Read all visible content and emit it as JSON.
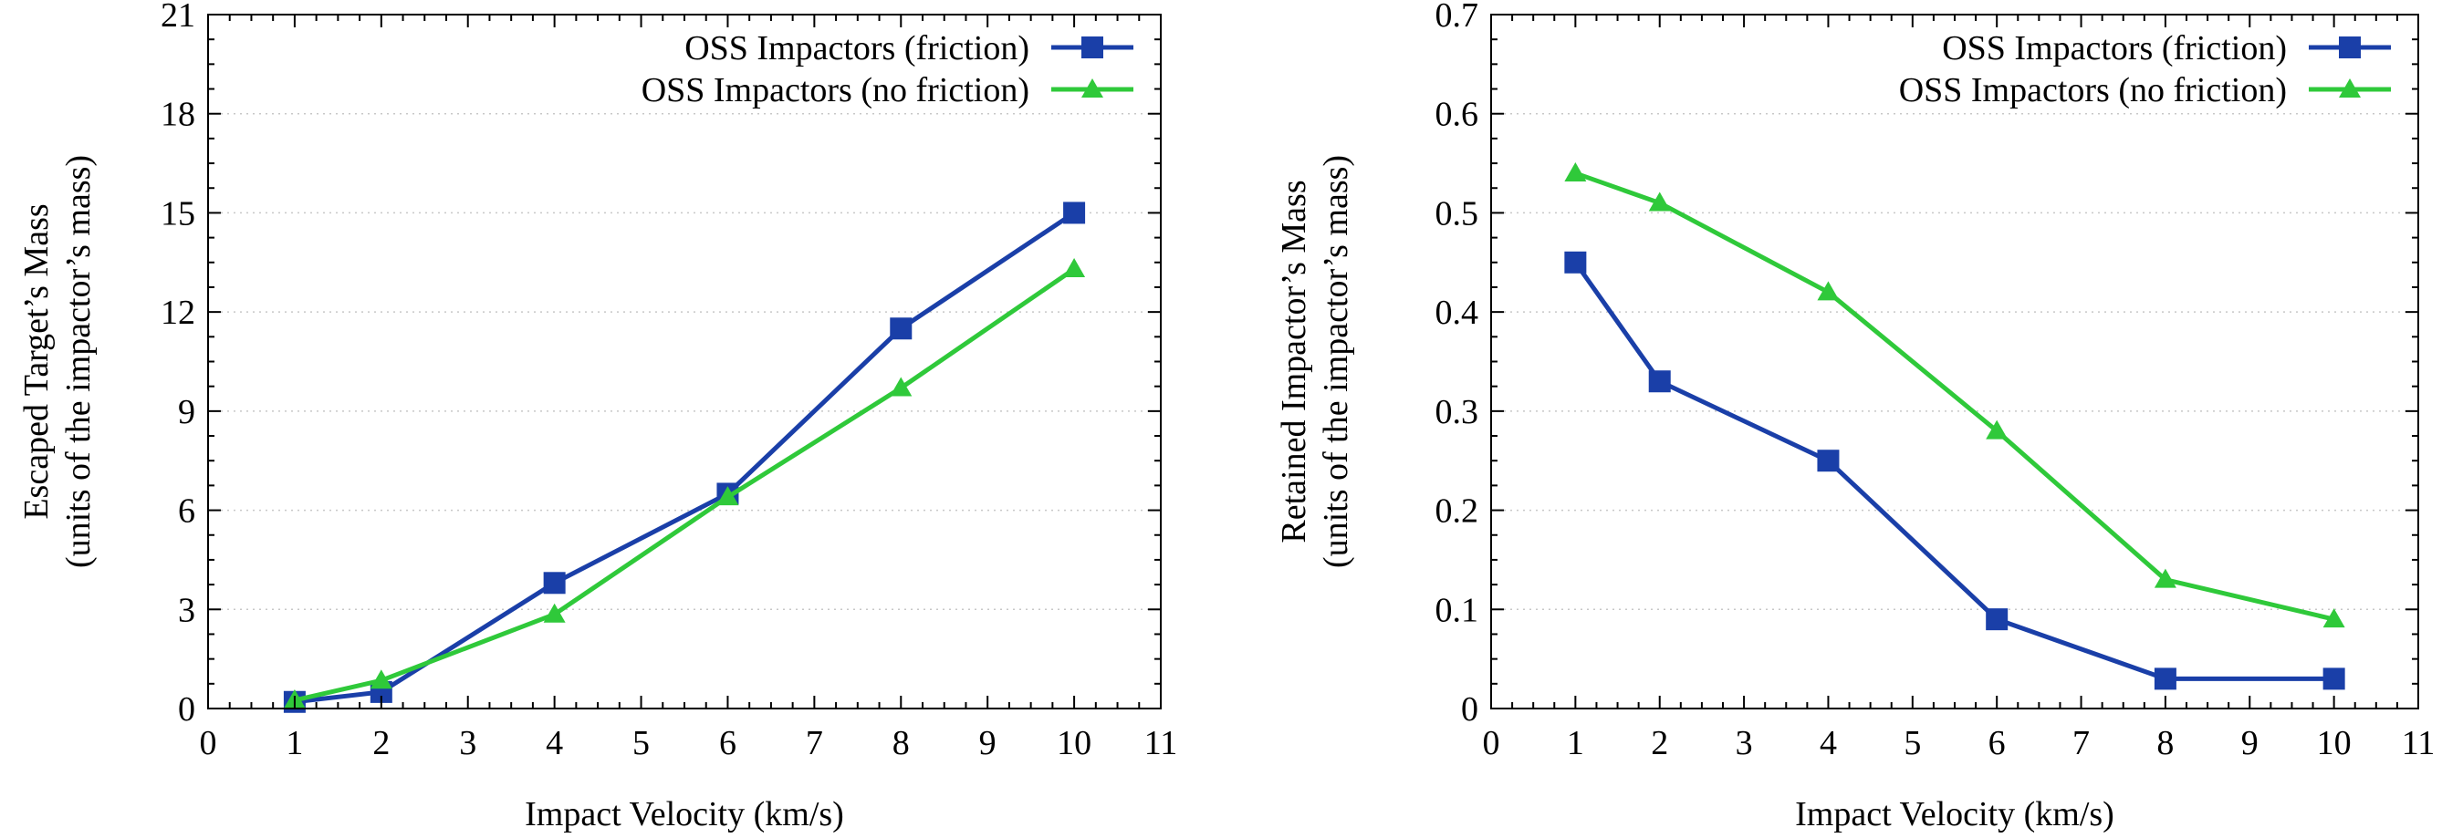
{
  "colors": {
    "friction": "#1a3fa8",
    "no_friction": "#2fc93a"
  },
  "chart_data": [
    {
      "type": "line",
      "title": "",
      "xlabel": "Impact Velocity (km/s)",
      "ylabel_line1": "Escaped Target’s Mass",
      "ylabel_line2": "(units of the impactor’s mass)",
      "xlim": [
        0,
        11
      ],
      "ylim": [
        0,
        21
      ],
      "xticks": [
        0,
        1,
        2,
        3,
        4,
        5,
        6,
        7,
        8,
        9,
        10,
        11
      ],
      "yticks": [
        0,
        3,
        6,
        9,
        12,
        15,
        18,
        21
      ],
      "ytick_labels": [
        "0",
        "3",
        "6",
        "9",
        "12",
        "15",
        "18",
        "21"
      ],
      "legend_position": "top-right",
      "grid": "horizontal-dotted",
      "series": [
        {
          "name": "OSS Impactors (friction)",
          "marker": "square",
          "color": "#1a3fa8",
          "x": [
            1,
            2,
            4,
            6,
            8,
            10
          ],
          "y": [
            0.2,
            0.5,
            3.8,
            6.5,
            11.5,
            15.0
          ]
        },
        {
          "name": "OSS Impactors (no friction)",
          "marker": "triangle",
          "color": "#2fc93a",
          "x": [
            1,
            2,
            4,
            6,
            8,
            10
          ],
          "y": [
            0.25,
            0.85,
            2.85,
            6.4,
            9.7,
            13.3
          ]
        }
      ]
    },
    {
      "type": "line",
      "title": "",
      "xlabel": "Impact Velocity (km/s)",
      "ylabel_line1": "Retained Impactor’s Mass",
      "ylabel_line2": "(units of the impactor’s mass)",
      "xlim": [
        0,
        11
      ],
      "ylim": [
        0,
        0.7
      ],
      "xticks": [
        0,
        1,
        2,
        3,
        4,
        5,
        6,
        7,
        8,
        9,
        10,
        11
      ],
      "yticks": [
        0,
        0.1,
        0.2,
        0.3,
        0.4,
        0.5,
        0.6,
        0.7
      ],
      "ytick_labels": [
        "0",
        "0.1",
        "0.2",
        "0.3",
        "0.4",
        "0.5",
        "0.6",
        "0.7"
      ],
      "legend_position": "top-right",
      "grid": "horizontal-dotted",
      "series": [
        {
          "name": "OSS Impactors (friction)",
          "marker": "square",
          "color": "#1a3fa8",
          "x": [
            1,
            2,
            4,
            6,
            8,
            10
          ],
          "y": [
            0.45,
            0.33,
            0.25,
            0.09,
            0.03,
            0.03
          ]
        },
        {
          "name": "OSS Impactors (no friction)",
          "marker": "triangle",
          "color": "#2fc93a",
          "x": [
            1,
            2,
            4,
            6,
            8,
            10
          ],
          "y": [
            0.54,
            0.51,
            0.42,
            0.28,
            0.13,
            0.09
          ]
        }
      ]
    }
  ]
}
